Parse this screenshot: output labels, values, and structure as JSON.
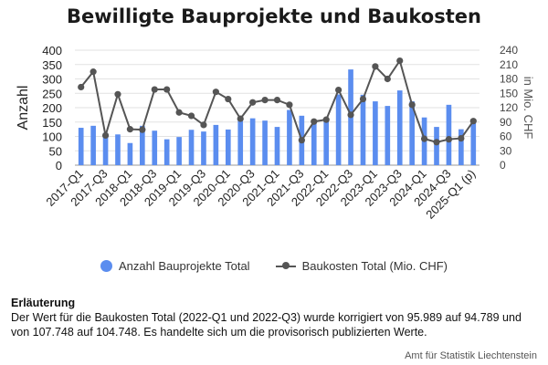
{
  "chart_data": {
    "type": "bar+line",
    "title": "Bewilligte Bauprojekte und Baukosten",
    "ylabel_left": "Anzahl",
    "ylabel_right": "in Mio. CHF",
    "ylim_left": [
      0,
      400
    ],
    "ylim_right": [
      0,
      240
    ],
    "yticks_left": [
      "0",
      "50",
      "100",
      "150",
      "200",
      "250",
      "300",
      "350",
      "400"
    ],
    "yticks_right": [
      "0",
      "30",
      "60",
      "90",
      "120",
      "150",
      "180",
      "210",
      "240"
    ],
    "grid": true,
    "legend_position": "bottom",
    "categories": [
      "2017-Q1",
      "2017-Q2",
      "2017-Q3",
      "2017-Q4",
      "2018-Q1",
      "2018-Q2",
      "2018-Q3",
      "2018-Q4",
      "2019-Q1",
      "2019-Q2",
      "2019-Q3",
      "2019-Q4",
      "2020-Q1",
      "2020-Q2",
      "2020-Q3",
      "2020-Q4",
      "2021-Q1",
      "2021-Q2",
      "2021-Q3",
      "2021-Q4",
      "2022-Q1",
      "2022-Q2",
      "2022-Q3",
      "2022-Q4",
      "2023-Q1",
      "2023-Q2",
      "2023-Q3",
      "2023-Q4",
      "2024-Q1",
      "2024-Q2",
      "2024-Q3",
      "2024-Q4",
      "2025-Q1 (p)"
    ],
    "visible_tick_labels": [
      "2017-Q1",
      "2017-Q3",
      "2018-Q1",
      "2018-Q3",
      "2019-Q1",
      "2019-Q3",
      "2020-Q1",
      "2020-Q3",
      "2021-Q1",
      "2021-Q3",
      "2022-Q1",
      "2022-Q3",
      "2023-Q1",
      "2023-Q3",
      "2024-Q1",
      "2024-Q3",
      "2025-Q1 (p)"
    ],
    "series": [
      {
        "name": "Anzahl Bauprojekte Total",
        "type": "bar",
        "axis": "left",
        "color": "#5b8def",
        "values": [
          130,
          137,
          112,
          107,
          77,
          137,
          120,
          90,
          98,
          123,
          117,
          140,
          124,
          163,
          163,
          155,
          133,
          192,
          172,
          155,
          160,
          246,
          333,
          245,
          222,
          206,
          260,
          222,
          166,
          133,
          210,
          125,
          154
        ]
      },
      {
        "name": "Baukosten Total (Mio. CHF)",
        "type": "line",
        "axis": "right",
        "color": "#555555",
        "values": [
          163,
          195,
          62,
          148,
          75,
          74,
          158,
          158,
          110,
          103,
          84,
          153,
          138,
          97,
          131,
          136,
          136,
          126,
          52,
          91,
          95,
          157,
          105,
          138,
          206,
          180,
          218,
          126,
          55,
          48,
          54,
          56,
          92
        ]
      }
    ]
  },
  "legend": {
    "bar_label": "Anzahl Bauprojekte Total",
    "line_label": "Baukosten Total (Mio. CHF)"
  },
  "note": {
    "title": "Erläuterung",
    "text": "Der Wert für die Baukosten Total (2022-Q1 und 2022-Q3) wurde korrigiert von 95.989 auf 94.789 und von 107.748 auf 104.748. Es handelte sich um die provisorisch publizierten Werte."
  },
  "source": "Amt für Statistik Liechtenstein"
}
